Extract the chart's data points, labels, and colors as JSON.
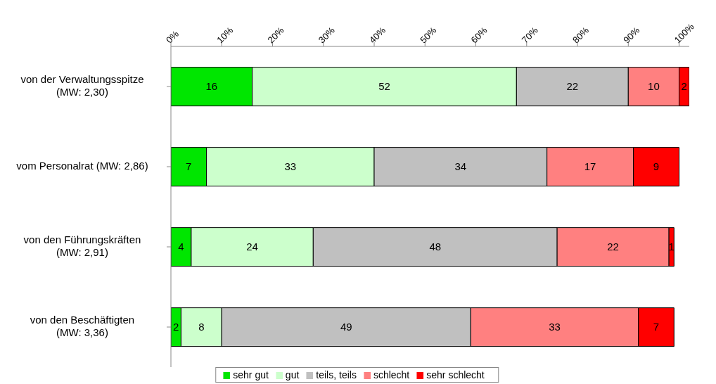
{
  "chart_data": {
    "type": "bar",
    "orientation": "horizontal",
    "stacked": true,
    "data_labels": true,
    "grid": false,
    "legend": "bottom",
    "categories": [
      "von der Verwaltungsspitze\n(MW: 2,30)",
      "vom Personalrat (MW: 2,86)",
      "von den Führungskräften\n(MW: 2,91)",
      "von den Beschäftigten\n(MW: 3,36)"
    ],
    "series": [
      {
        "name": "sehr gut",
        "color": "#00e600",
        "values": [
          16,
          7,
          4,
          2
        ]
      },
      {
        "name": "gut",
        "color": "#ccffcc",
        "values": [
          52,
          33,
          24,
          8
        ]
      },
      {
        "name": "teils, teils",
        "color": "#c0c0c0",
        "values": [
          22,
          34,
          48,
          49
        ]
      },
      {
        "name": "schlecht",
        "color": "#ff8080",
        "values": [
          10,
          17,
          22,
          33
        ]
      },
      {
        "name": "sehr schlecht",
        "color": "#ff0000",
        "values": [
          2,
          9,
          1,
          7
        ]
      }
    ],
    "xlim": [
      0,
      102
    ],
    "xticks": [
      {
        "value": 0,
        "label": "0%"
      },
      {
        "value": 10,
        "label": "10%"
      },
      {
        "value": 20,
        "label": "20%"
      },
      {
        "value": 30,
        "label": "30%"
      },
      {
        "value": 40,
        "label": "40%"
      },
      {
        "value": 50,
        "label": "50%"
      },
      {
        "value": 60,
        "label": "60%"
      },
      {
        "value": 70,
        "label": "70%"
      },
      {
        "value": 80,
        "label": "80%"
      },
      {
        "value": 90,
        "label": "90%"
      },
      {
        "value": 100,
        "label": "100%"
      }
    ]
  }
}
